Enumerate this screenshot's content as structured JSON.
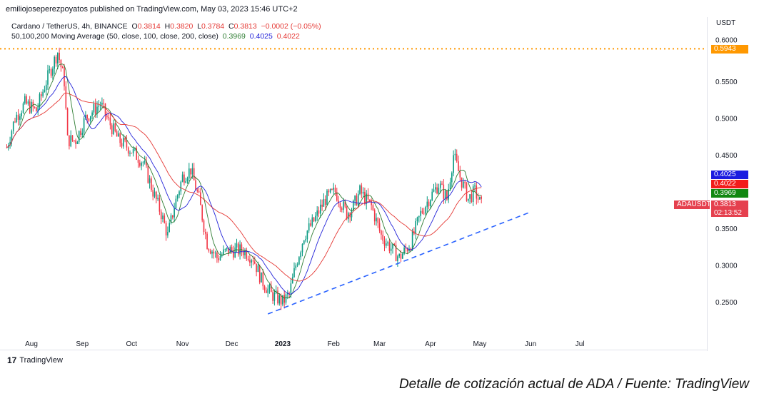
{
  "header": {
    "published": "emiliojoseperezpoyatos published on TradingView.com, May 03, 2023 15:46 UTC+2",
    "symbol": "Cardano / TetherUS, 4h, BINANCE",
    "o_label": "O",
    "o": "0.3814",
    "h_label": "H",
    "h": "0.3820",
    "l_label": "L",
    "l": "0.3784",
    "c_label": "C",
    "c": "0.3813",
    "change": "−0.0002 (−0.05%)",
    "ma_label": "50,100,200 Moving Average (50, close, 100, close, 200, close)",
    "ma50": "0.3969",
    "ma100": "0.4025",
    "ma200": "0.4022"
  },
  "axis_currency": "USDT",
  "tags": {
    "ma100": "0.4025",
    "ma200": "0.4022",
    "ma50": "0.3969",
    "symbol": "ADAUSDT",
    "price": "0.3813",
    "countdown": "02:13:52",
    "high_line": "0.5943"
  },
  "footer": {
    "logo": "TradingView",
    "caption": "Detalle de cotización actual de ADA / Fuente: TradingView"
  },
  "colors": {
    "up": "#089981",
    "down": "#f23645",
    "ma50": "#2e7d32",
    "ma100": "#2323d8",
    "ma200": "#e53935",
    "trend": "#2962ff",
    "hline": "#ff9800"
  },
  "chart_data": {
    "type": "candlestick",
    "title": "Cardano / TetherUS, 4h, BINANCE",
    "ylabel": "USDT",
    "ylim": [
      0.21,
      0.63
    ],
    "y_ticks": [
      "0.2500",
      "0.3000",
      "0.3500",
      "0.4500",
      "0.5000",
      "0.5500",
      "0.6000"
    ],
    "y_tick_values": [
      0.25,
      0.3,
      0.35,
      0.45,
      0.5,
      0.55,
      0.6
    ],
    "x_unit": "days since 2022-08-01",
    "x_ticks": [
      {
        "label": "Aug",
        "day": 0
      },
      {
        "label": "Sep",
        "day": 31
      },
      {
        "label": "Oct",
        "day": 61
      },
      {
        "label": "Nov",
        "day": 92
      },
      {
        "label": "Dec",
        "day": 122
      },
      {
        "label": "2023",
        "day": 153
      },
      {
        "label": "Feb",
        "day": 184
      },
      {
        "label": "Mar",
        "day": 212
      },
      {
        "label": "Apr",
        "day": 243
      },
      {
        "label": "May",
        "day": 273
      },
      {
        "label": "Jun",
        "day": 304
      },
      {
        "label": "Jul",
        "day": 334
      }
    ],
    "price_path": [
      [
        -15,
        0.46
      ],
      [
        -10,
        0.5
      ],
      [
        -4,
        0.52
      ],
      [
        3,
        0.51
      ],
      [
        9,
        0.55
      ],
      [
        16,
        0.59
      ],
      [
        20,
        0.55
      ],
      [
        22,
        0.47
      ],
      [
        27,
        0.47
      ],
      [
        33,
        0.5
      ],
      [
        42,
        0.52
      ],
      [
        46,
        0.5
      ],
      [
        53,
        0.47
      ],
      [
        59,
        0.46
      ],
      [
        68,
        0.44
      ],
      [
        74,
        0.4
      ],
      [
        79,
        0.37
      ],
      [
        83,
        0.34
      ],
      [
        87,
        0.38
      ],
      [
        92,
        0.42
      ],
      [
        97,
        0.43
      ],
      [
        102,
        0.39
      ],
      [
        107,
        0.33
      ],
      [
        113,
        0.31
      ],
      [
        120,
        0.32
      ],
      [
        129,
        0.32
      ],
      [
        135,
        0.31
      ],
      [
        140,
        0.28
      ],
      [
        146,
        0.26
      ],
      [
        153,
        0.25
      ],
      [
        157,
        0.26
      ],
      [
        161,
        0.3
      ],
      [
        166,
        0.34
      ],
      [
        172,
        0.36
      ],
      [
        179,
        0.39
      ],
      [
        185,
        0.4
      ],
      [
        192,
        0.37
      ],
      [
        196,
        0.38
      ],
      [
        200,
        0.4
      ],
      [
        207,
        0.38
      ],
      [
        213,
        0.34
      ],
      [
        220,
        0.32
      ],
      [
        224,
        0.31
      ],
      [
        231,
        0.33
      ],
      [
        237,
        0.37
      ],
      [
        242,
        0.39
      ],
      [
        248,
        0.41
      ],
      [
        253,
        0.39
      ],
      [
        257,
        0.45
      ],
      [
        261,
        0.42
      ],
      [
        266,
        0.39
      ],
      [
        270,
        0.4
      ],
      [
        274,
        0.3813
      ]
    ],
    "moving_averages": [
      {
        "name": "MA 50",
        "last": 0.3969
      },
      {
        "name": "MA 100",
        "last": 0.4025
      },
      {
        "name": "MA 200",
        "last": 0.4022
      }
    ],
    "horizontal_line": 0.5943,
    "trendline": [
      [
        144,
        0.2335
      ],
      [
        303,
        0.3714
      ]
    ]
  }
}
